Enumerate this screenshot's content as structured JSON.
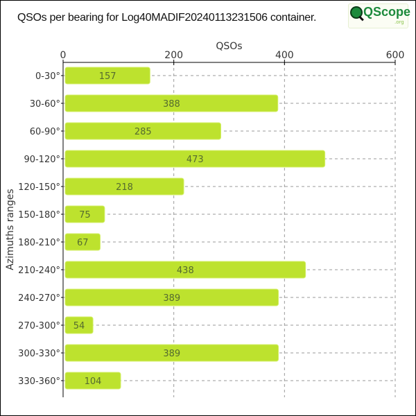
{
  "title": "QSOs per bearing for Log40MADIF20240113231506 container.",
  "logo": {
    "text": "QScope",
    "suffix": ".org"
  },
  "chart_data": {
    "type": "bar",
    "orientation": "horizontal",
    "xlabel": "QSOs",
    "ylabel": "Azimuths ranges",
    "xlim": [
      0,
      600
    ],
    "xticks": [
      0,
      200,
      400,
      600
    ],
    "grid": true,
    "x_axis_position": "top",
    "bar_color": "#bde22e",
    "label_color": "#556b2f",
    "categories": [
      "0-30°",
      "30-60°",
      "60-90°",
      "90-120°",
      "120-150°",
      "150-180°",
      "180-210°",
      "210-240°",
      "240-270°",
      "270-300°",
      "300-330°",
      "330-360°"
    ],
    "values": [
      157,
      388,
      285,
      473,
      218,
      75,
      67,
      438,
      389,
      54,
      389,
      104
    ]
  }
}
